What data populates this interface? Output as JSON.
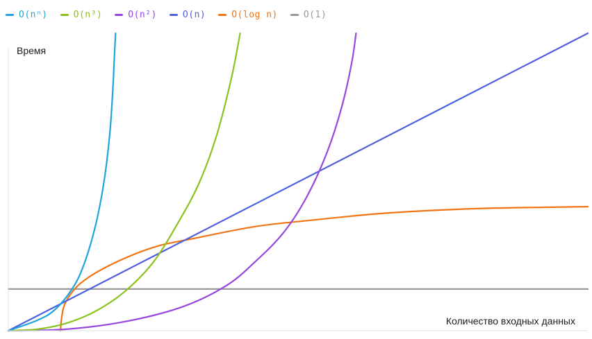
{
  "chart_data": {
    "type": "line",
    "xlabel": "Количество входных данных",
    "ylabel": "Время",
    "xlim": [
      0,
      20
    ],
    "ylim": [
      0,
      10
    ],
    "grid": false,
    "legend": "top-left",
    "series": [
      {
        "name": "O(nⁿ)",
        "color": "#1fa3dc",
        "points": [
          [
            0,
            0
          ],
          [
            1.0,
            0.35
          ],
          [
            1.6,
            0.7
          ],
          [
            2.2,
            1.4
          ],
          [
            2.6,
            2.2
          ],
          [
            3.0,
            3.5
          ],
          [
            3.3,
            5.0
          ],
          [
            3.5,
            6.6
          ],
          [
            3.6,
            8.0
          ],
          [
            3.65,
            9.0
          ],
          [
            3.7,
            10.0
          ]
        ]
      },
      {
        "name": "O(n³)",
        "color": "#8cc21f",
        "points": [
          [
            0,
            0
          ],
          [
            1.0,
            0.05
          ],
          [
            2.0,
            0.25
          ],
          [
            3.0,
            0.65
          ],
          [
            4.0,
            1.3
          ],
          [
            5.0,
            2.3
          ],
          [
            5.9,
            3.7
          ],
          [
            6.6,
            5.0
          ],
          [
            7.2,
            6.6
          ],
          [
            7.7,
            8.5
          ],
          [
            8.0,
            10.0
          ]
        ]
      },
      {
        "name": "O(n²)",
        "color": "#9547dd",
        "points": [
          [
            0,
            0
          ],
          [
            2.0,
            0.05
          ],
          [
            4.0,
            0.3
          ],
          [
            6.0,
            0.8
          ],
          [
            7.5,
            1.5
          ],
          [
            8.5,
            2.3
          ],
          [
            9.5,
            3.3
          ],
          [
            10.3,
            4.5
          ],
          [
            11.0,
            6.0
          ],
          [
            11.5,
            7.5
          ],
          [
            11.85,
            9.0
          ],
          [
            12.0,
            10.0
          ]
        ]
      },
      {
        "name": "O(n)",
        "color": "#4f5fdf",
        "points": [
          [
            0,
            0
          ],
          [
            20,
            10
          ]
        ]
      },
      {
        "name": "O(log n)",
        "color": "#f07414",
        "points": [
          [
            1.8,
            0
          ],
          [
            1.85,
            0.5
          ],
          [
            2.0,
            1.0
          ],
          [
            2.5,
            1.6
          ],
          [
            3.5,
            2.2
          ],
          [
            5.0,
            2.8
          ],
          [
            6.4,
            3.1
          ],
          [
            8.5,
            3.5
          ],
          [
            10.3,
            3.7
          ],
          [
            13.0,
            3.95
          ],
          [
            16.0,
            4.1
          ],
          [
            18.5,
            4.15
          ],
          [
            20,
            4.17
          ]
        ]
      },
      {
        "name": "O(1)",
        "color": "#999999",
        "points": [
          [
            0,
            1.4
          ],
          [
            20,
            1.4
          ]
        ]
      }
    ]
  }
}
